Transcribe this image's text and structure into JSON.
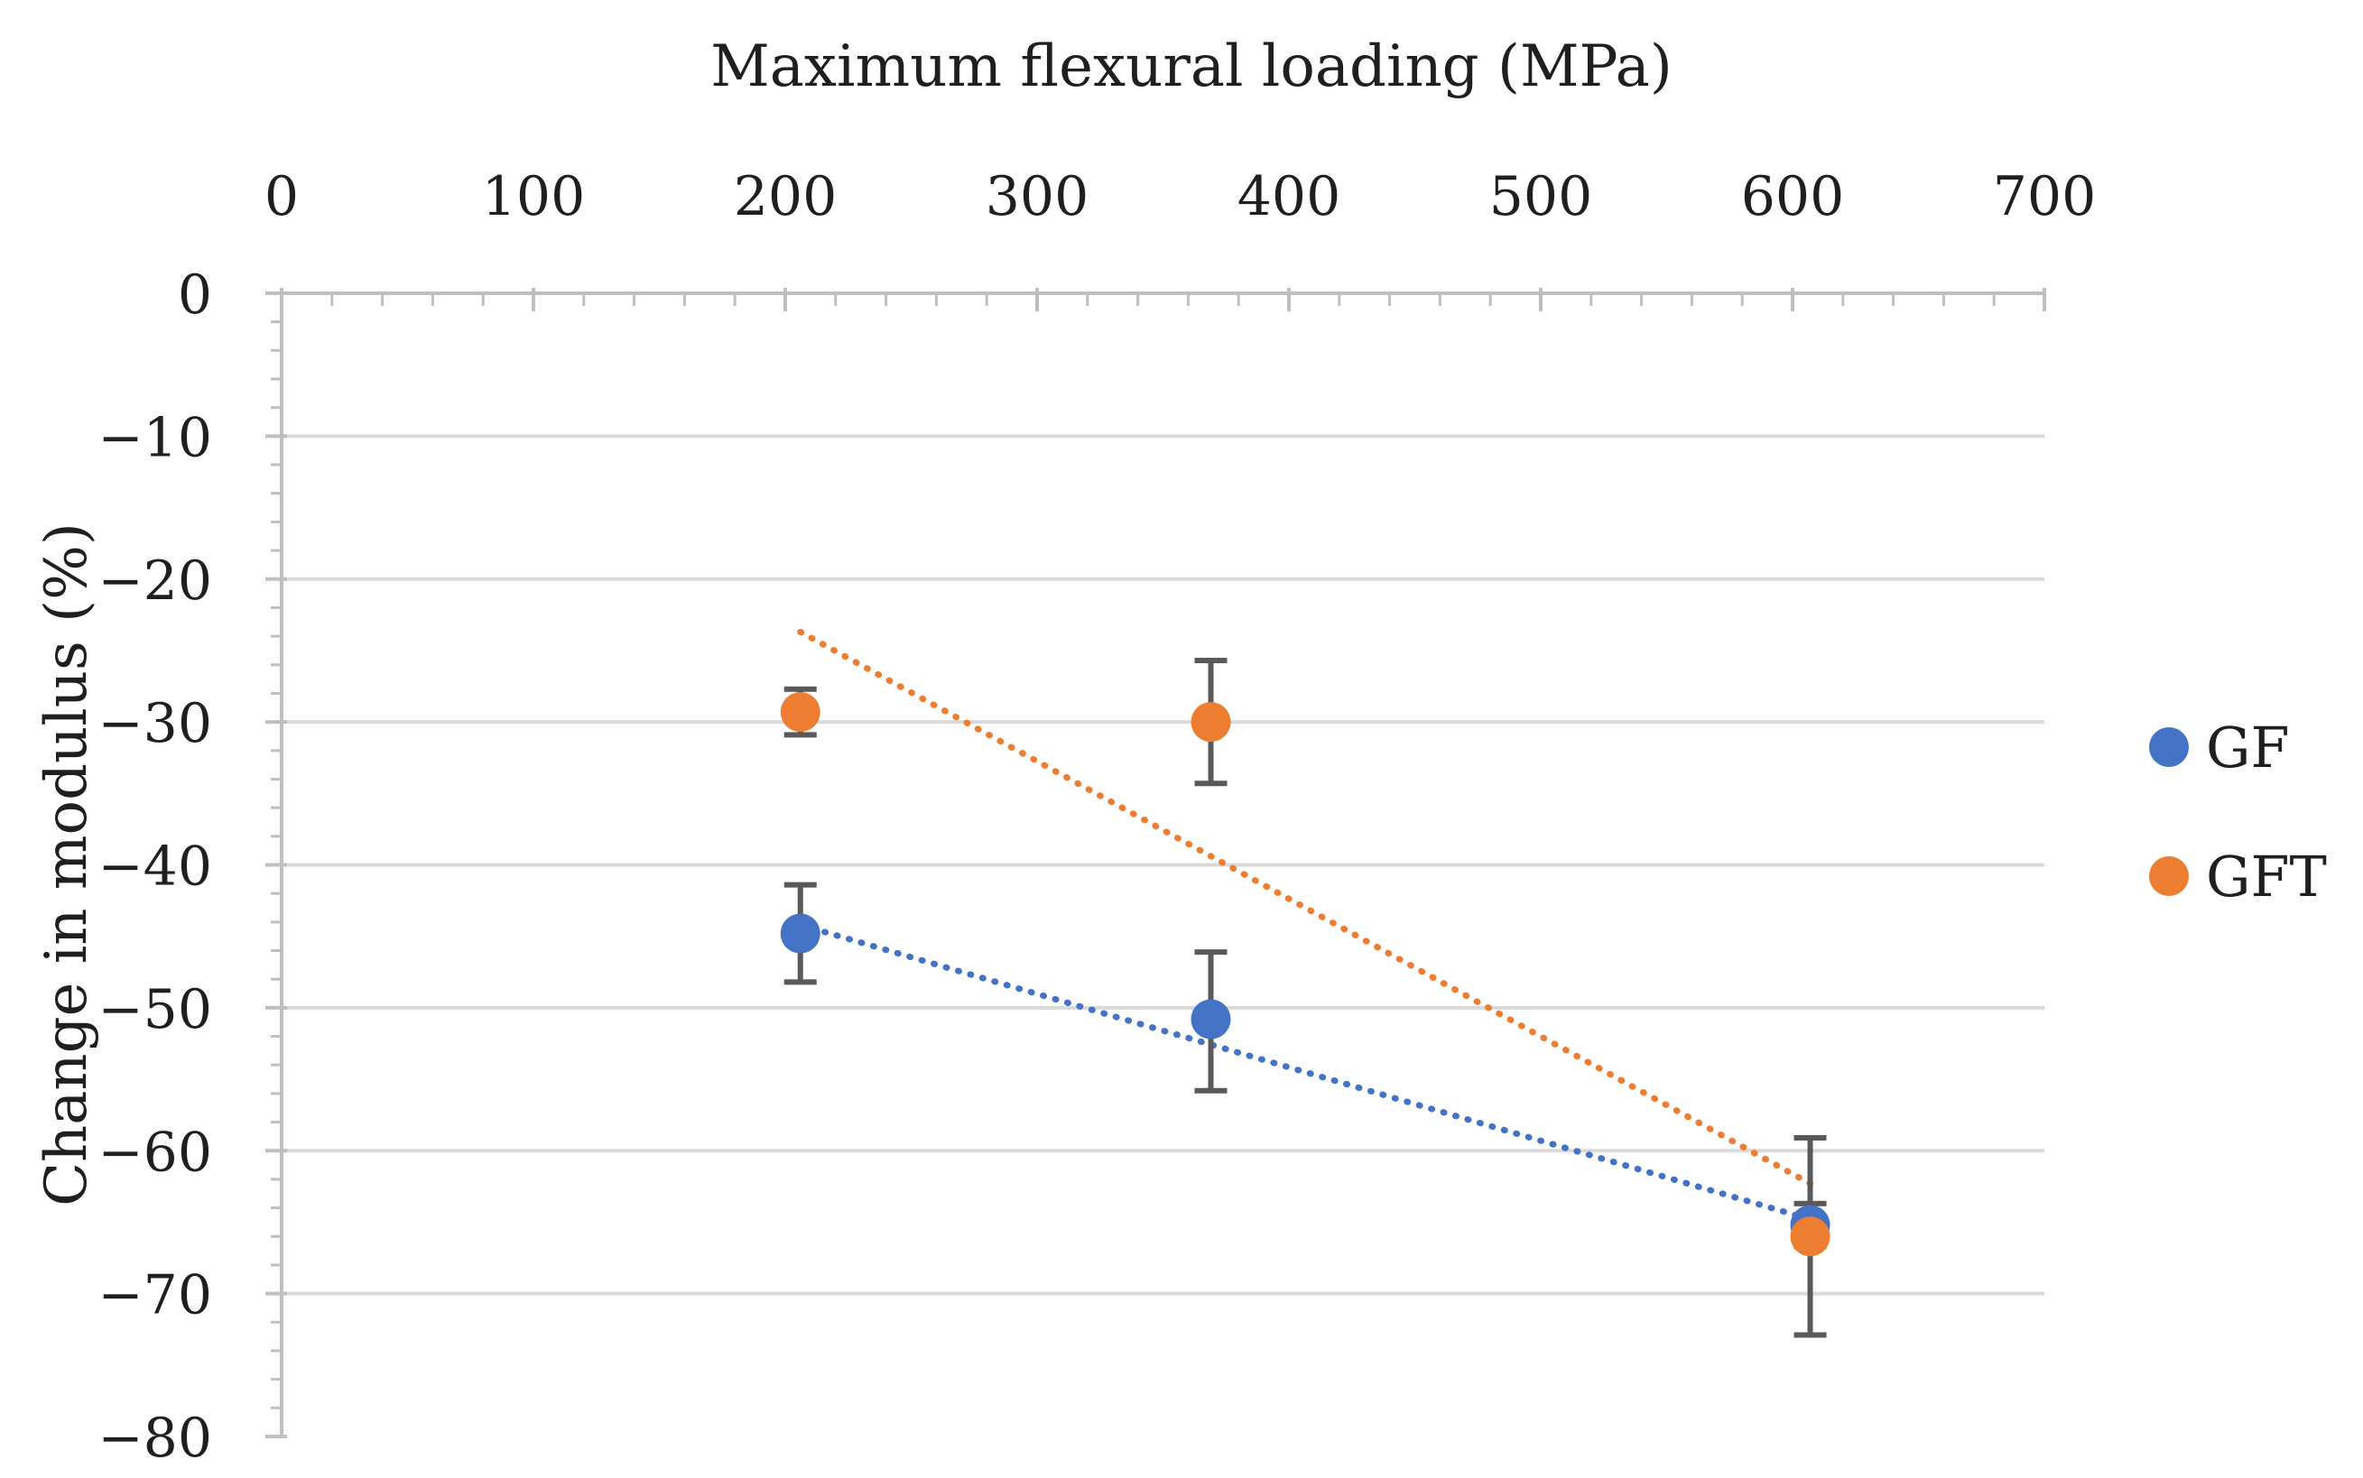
{
  "chart_data": {
    "type": "scatter",
    "title": "",
    "xlabel": "Maximum flexural loading (MPa)",
    "ylabel": "Change in modulus (%)",
    "x_axis_position": "top",
    "xlim": [
      0,
      700
    ],
    "ylim": [
      -80,
      0
    ],
    "xticks": [
      0,
      100,
      200,
      300,
      400,
      500,
      600,
      700
    ],
    "yticks": [
      0,
      -10,
      -20,
      -30,
      -40,
      -50,
      -60,
      -70,
      -80
    ],
    "xtick_labels": [
      "0",
      "100",
      "200",
      "300",
      "400",
      "500",
      "600",
      "700"
    ],
    "ytick_labels": [
      "0",
      "−10",
      "−20",
      "−30",
      "−40",
      "−50",
      "−60",
      "−70",
      "−80"
    ],
    "grid": true,
    "legend_position": "right",
    "series": [
      {
        "name": "GF",
        "color": "#4472C4",
        "points": [
          {
            "x": 206,
            "y": -44.8,
            "err_low": 3.4,
            "err_high": 3.4
          },
          {
            "x": 369,
            "y": -50.8,
            "err_low": 5.0,
            "err_high": 4.7
          },
          {
            "x": 607,
            "y": -65.2,
            "err_low": 1.5,
            "err_high": 1.5
          }
        ],
        "trendline": {
          "style": "dotted",
          "from": {
            "x": 206,
            "y": -44.2
          },
          "to": {
            "x": 607,
            "y": -64.8
          }
        }
      },
      {
        "name": "GFT",
        "color": "#ED7D31",
        "points": [
          {
            "x": 206,
            "y": -29.3,
            "err_low": 1.6,
            "err_high": 1.6
          },
          {
            "x": 369,
            "y": -30.0,
            "err_low": 4.3,
            "err_high": 4.3
          },
          {
            "x": 607,
            "y": -66.0,
            "err_low": 6.9,
            "err_high": 6.9
          }
        ],
        "trendline": {
          "style": "dotted",
          "from": {
            "x": 206,
            "y": -23.7
          },
          "to": {
            "x": 607,
            "y": -62.3
          }
        }
      }
    ]
  }
}
